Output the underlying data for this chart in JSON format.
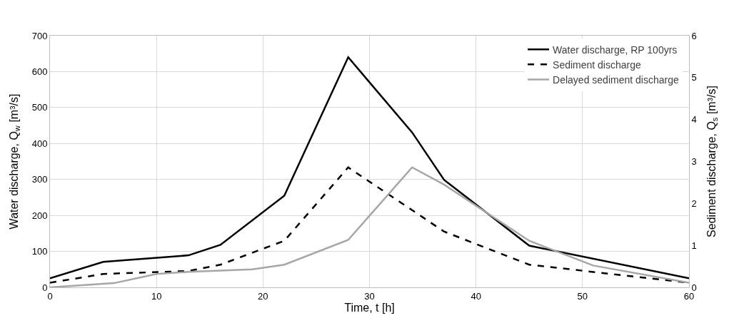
{
  "chart_data": {
    "type": "line",
    "xlabel": "Time, t [h]",
    "ylabel": "Water discharge, Q$_{w}$ [m³/s]",
    "y2label": "Sediment discharge, Q$_{s}$ [m³/s]",
    "xlim": [
      0,
      60
    ],
    "xticks": [
      0,
      10,
      20,
      30,
      40,
      50,
      60
    ],
    "ylim": [
      0,
      700
    ],
    "yticks": [
      0,
      100,
      200,
      300,
      400,
      500,
      600,
      700
    ],
    "y2lim": [
      0,
      6
    ],
    "y2ticks": [
      0,
      1,
      2,
      3,
      4,
      5,
      6
    ],
    "grid": true,
    "legend": "top right",
    "marker": "none",
    "series": [
      {
        "name": "Water discharge, RP 100yrs",
        "color": "#000000",
        "line_style": "solid",
        "x": [
          0,
          5,
          13,
          16,
          22,
          28,
          34,
          37,
          45,
          60
        ],
        "values": [
          25,
          71,
          89,
          118,
          255,
          640,
          431,
          299,
          116,
          25
        ]
      },
      {
        "name": "Sediment discharge",
        "color": "#000000",
        "line_style": "dashed",
        "axis": "y2",
        "x": [
          0,
          5,
          13,
          16,
          22,
          28,
          37,
          45,
          60
        ],
        "values": [
          0.11,
          0.32,
          0.39,
          0.54,
          1.11,
          2.86,
          1.33,
          0.54,
          0.11
        ]
      },
      {
        "name": "Delayed sediment discharge",
        "color": "#a6a6a6",
        "line_style": "solid",
        "axis": "y2",
        "x": [
          0,
          6,
          10,
          13,
          19,
          22,
          28,
          34,
          37,
          45,
          51,
          60
        ],
        "values": [
          0,
          0.1,
          0.32,
          0.37,
          0.43,
          0.54,
          1.13,
          2.86,
          2.45,
          1.11,
          0.52,
          0.11
        ]
      }
    ]
  }
}
